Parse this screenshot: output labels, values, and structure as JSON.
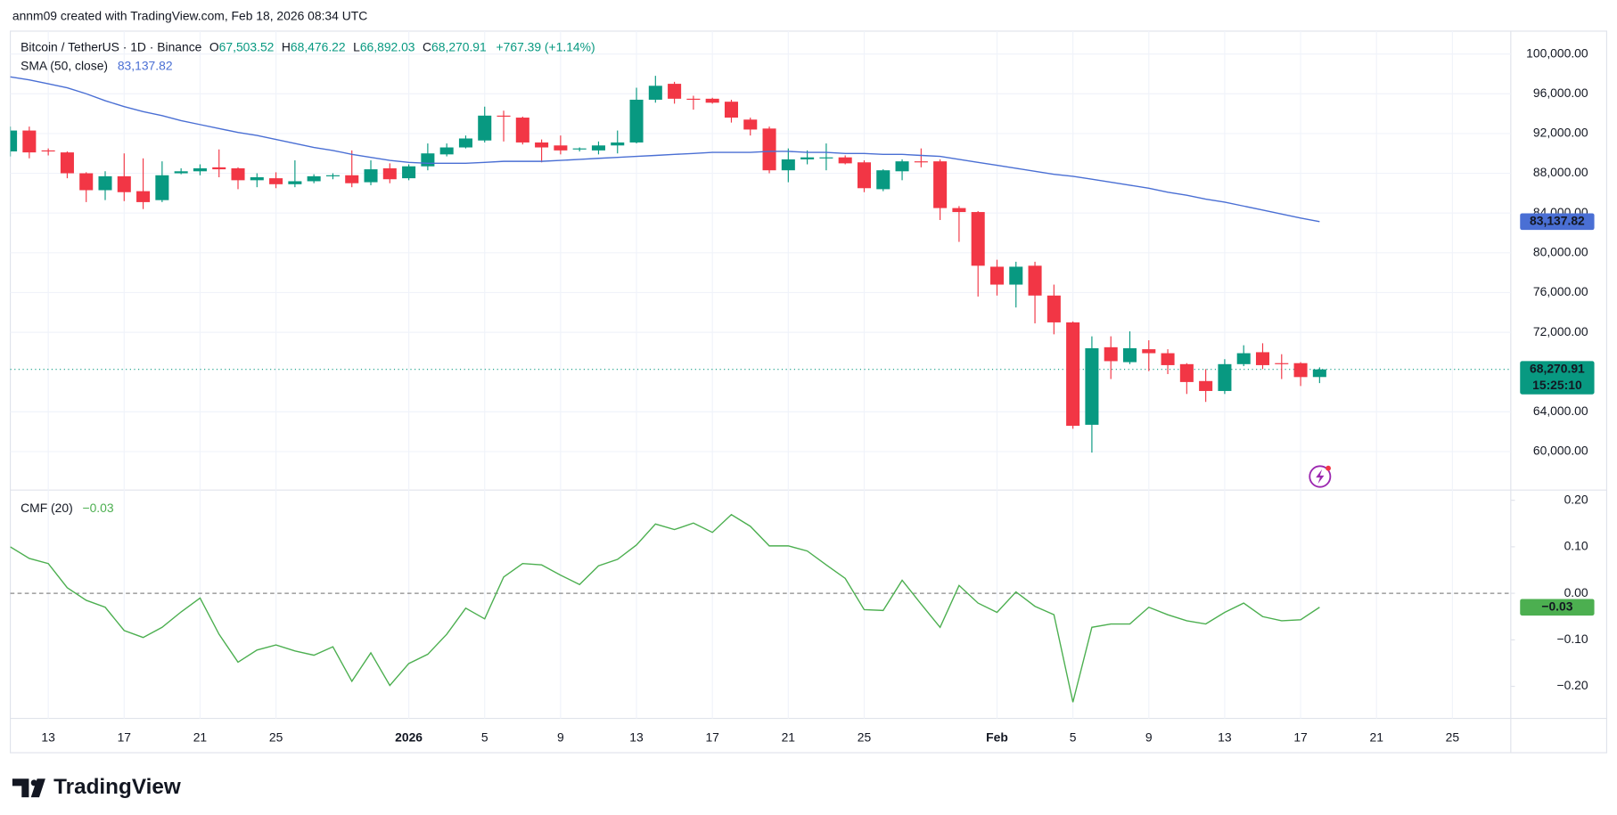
{
  "header": {
    "attribution": "annm09 created with TradingView.com, Feb 18, 2026 08:34 UTC"
  },
  "chart_data": [
    {
      "type": "candlestick",
      "title": "Bitcoin / TetherUS · 1D · Binance",
      "legend": {
        "o": "O",
        "o_value": "67,503.52",
        "h": "H",
        "h_value": "68,476.22",
        "l": "L",
        "l_value": "66,892.03",
        "c": "C",
        "c_value": "68,270.91",
        "change": "+767.39 (+1.14%)"
      },
      "categories": [
        null,
        null,
        "13",
        null,
        null,
        null,
        "17",
        null,
        null,
        null,
        "21",
        null,
        null,
        null,
        "25",
        null,
        null,
        null,
        null,
        null,
        null,
        "2026",
        null,
        null,
        null,
        "5",
        null,
        null,
        null,
        "9",
        null,
        null,
        null,
        "13",
        null,
        null,
        null,
        "17",
        null,
        null,
        null,
        "21",
        null,
        null,
        null,
        "25",
        null,
        null,
        null,
        null,
        null,
        null,
        "Feb",
        null,
        null,
        null,
        "5",
        null,
        null,
        null,
        "9",
        null,
        null,
        null,
        "13",
        null,
        null,
        null,
        "17",
        null,
        null,
        null,
        "21",
        null,
        null,
        null,
        "25",
        null,
        null
      ],
      "open": [
        90200,
        92300,
        90300,
        90100,
        88000,
        86300,
        87700,
        86200,
        85300,
        88000,
        88200,
        88600,
        88500,
        87300,
        87500,
        86900,
        87200,
        87700,
        87800,
        87100,
        88500,
        87500,
        88700,
        89900,
        90600,
        91300,
        93800,
        93600,
        91100,
        90800,
        90400,
        90300,
        90800,
        91100,
        95400,
        97000,
        95500,
        95500,
        95200,
        93400,
        92500,
        88300,
        89400,
        89500,
        89600,
        89100,
        86400,
        88200,
        89200,
        89200,
        84500,
        84100,
        78600,
        76800,
        78700,
        75700,
        73000,
        62700,
        70500,
        69000,
        70300,
        69900,
        68800,
        67100,
        66100,
        68800,
        70000,
        68900,
        68900,
        67503.52,
        null,
        null,
        null,
        null,
        null,
        null,
        null,
        null,
        null
      ],
      "high": [
        92700,
        92700,
        90500,
        90200,
        88100,
        88200,
        90000,
        89500,
        89200,
        88500,
        88900,
        90400,
        88600,
        88000,
        88100,
        89300,
        87900,
        88000,
        90300,
        89300,
        89000,
        88900,
        91000,
        91000,
        91800,
        94700,
        94300,
        93700,
        91400,
        91800,
        90600,
        91200,
        92300,
        96600,
        97800,
        97200,
        95800,
        95600,
        95400,
        93600,
        92700,
        90500,
        90300,
        91000,
        89800,
        89300,
        88400,
        89400,
        90500,
        89400,
        84700,
        84200,
        79300,
        79100,
        79100,
        76800,
        73100,
        71600,
        71600,
        72100,
        71200,
        70300,
        68900,
        68300,
        69300,
        70700,
        70900,
        69800,
        69000,
        68476.22,
        null,
        null,
        null,
        null,
        null,
        null,
        null,
        null,
        null
      ],
      "low": [
        89700,
        89500,
        89800,
        87500,
        85100,
        85300,
        85200,
        84400,
        85100,
        87900,
        87800,
        87600,
        86400,
        86600,
        86500,
        86600,
        87000,
        87400,
        86600,
        86800,
        87000,
        87300,
        88300,
        89700,
        90500,
        91100,
        91200,
        90900,
        89100,
        89900,
        90200,
        89900,
        90000,
        91000,
        95100,
        95000,
        94400,
        95000,
        93100,
        91800,
        88000,
        87100,
        88900,
        88300,
        88900,
        86100,
        86200,
        87300,
        88600,
        83300,
        81100,
        75600,
        75700,
        74500,
        72900,
        71800,
        62300,
        59900,
        67300,
        68800,
        68100,
        67800,
        65800,
        65000,
        65800,
        68600,
        68300,
        67300,
        66600,
        66892.03,
        null,
        null,
        null,
        null,
        null,
        null,
        null,
        null,
        null
      ],
      "close": [
        92300,
        90100,
        90200,
        88000,
        86300,
        87700,
        86100,
        85100,
        87800,
        88200,
        88500,
        88400,
        87300,
        87600,
        86900,
        87200,
        87700,
        87800,
        87000,
        88400,
        87400,
        88700,
        90000,
        90600,
        91500,
        93800,
        93700,
        91100,
        90600,
        90300,
        90500,
        90800,
        91100,
        95400,
        96800,
        95500,
        95400,
        95100,
        93600,
        92400,
        88300,
        89400,
        89600,
        89600,
        89000,
        86500,
        88300,
        89200,
        89100,
        84500,
        84100,
        78700,
        76800,
        78600,
        75700,
        73000,
        62600,
        70400,
        69100,
        70400,
        69900,
        68700,
        67000,
        66100,
        68800,
        69900,
        68700,
        68800,
        67500,
        68270.91,
        null,
        null,
        null,
        null,
        null,
        null,
        null,
        null,
        null
      ],
      "up_color": "#089981",
      "down_color": "#f23645",
      "last_price_label": "68,270.91",
      "countdown": "15:25:10",
      "series": [
        {
          "name": "SMA (50, close)",
          "color": "#4a6fd4",
          "last_label": "83,137.82",
          "values": [
            97700,
            97400,
            97000,
            96600,
            96000,
            95300,
            94700,
            94200,
            93800,
            93300,
            92900,
            92500,
            92100,
            91800,
            91400,
            91000,
            90600,
            90300,
            89900,
            89600,
            89300,
            89100,
            89000,
            89000,
            89000,
            89100,
            89200,
            89200,
            89200,
            89300,
            89400,
            89500,
            89600,
            89700,
            89800,
            89900,
            90000,
            90100,
            90100,
            90100,
            90200,
            90200,
            90100,
            90100,
            90000,
            90000,
            89900,
            89900,
            89800,
            89700,
            89400,
            89100,
            88800,
            88500,
            88200,
            87900,
            87700,
            87400,
            87100,
            86800,
            86500,
            86100,
            85800,
            85400,
            85100,
            84700,
            84300,
            83900,
            83500,
            83137.82,
            null,
            null,
            null,
            null,
            null,
            null,
            null,
            null,
            null
          ]
        }
      ],
      "ylim": [
        56135,
        102298
      ],
      "yticks": [
        {
          "value": 100000,
          "label": "100,000.00"
        },
        {
          "value": 96000,
          "label": "96,000.00"
        },
        {
          "value": 92000,
          "label": "92,000.00"
        },
        {
          "value": 88000,
          "label": "88,000.00"
        },
        {
          "value": 84000,
          "label": "84,000.00"
        },
        {
          "value": 80000,
          "label": "80,000.00"
        },
        {
          "value": 76000,
          "label": "76,000.00"
        },
        {
          "value": 72000,
          "label": "72,000.00"
        },
        {
          "value": 64000,
          "label": "64,000.00"
        },
        {
          "value": 60000,
          "label": "60,000.00"
        }
      ],
      "grid": true
    },
    {
      "type": "line",
      "series": [
        {
          "name": "CMF (20)",
          "color": "#4caf50",
          "last_label": "−0.03",
          "values": [
            0.1,
            0.075,
            0.064,
            0.012,
            -0.015,
            -0.03,
            -0.08,
            -0.095,
            -0.073,
            -0.04,
            -0.01,
            -0.088,
            -0.148,
            -0.122,
            -0.111,
            -0.124,
            -0.133,
            -0.115,
            -0.189,
            -0.128,
            -0.198,
            -0.151,
            -0.131,
            -0.088,
            -0.032,
            -0.055,
            0.035,
            0.064,
            0.061,
            0.039,
            0.019,
            0.059,
            0.073,
            0.104,
            0.149,
            0.137,
            0.151,
            0.131,
            0.169,
            0.144,
            0.102,
            0.102,
            0.091,
            0.061,
            0.032,
            -0.035,
            -0.037,
            0.028,
            -0.023,
            -0.073,
            0.017,
            -0.021,
            -0.041,
            0.003,
            -0.028,
            -0.046,
            -0.234,
            -0.073,
            -0.066,
            -0.066,
            -0.03,
            -0.046,
            -0.059,
            -0.066,
            -0.041,
            -0.021,
            -0.05,
            -0.059,
            -0.057,
            -0.03,
            null,
            null,
            null,
            null,
            null,
            null,
            null,
            null,
            null
          ]
        }
      ],
      "ylim": [
        -0.269,
        0.222
      ],
      "yticks": [
        {
          "value": 0.2,
          "label": "0.20"
        },
        {
          "value": 0.1,
          "label": "0.10"
        },
        {
          "value": 0,
          "label": "0.00"
        },
        {
          "value": -0.1,
          "label": "−0.10"
        },
        {
          "value": -0.2,
          "label": "−0.20"
        }
      ],
      "reference_line": 0
    }
  ],
  "footer": {
    "logo": "TradingView"
  }
}
